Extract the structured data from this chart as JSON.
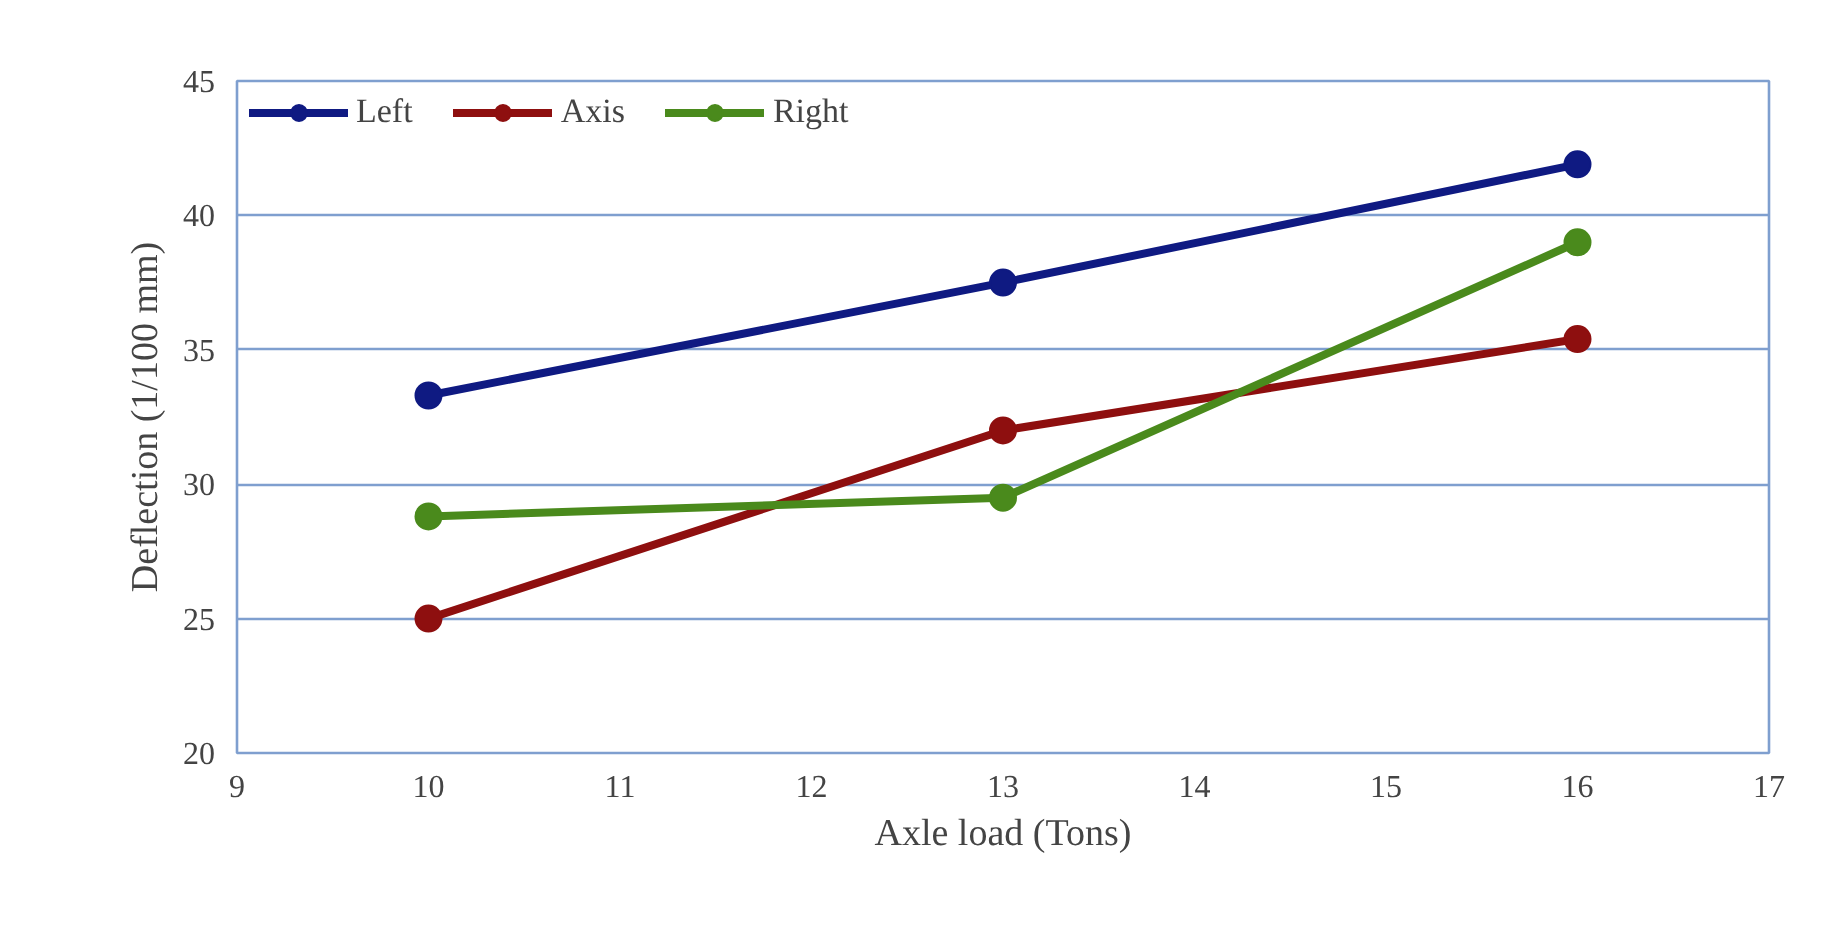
{
  "chart_data": {
    "type": "line",
    "xlabel": "Axle load (Tons)",
    "ylabel": "Deflection (1/100 mm)",
    "x": [
      10,
      13,
      16
    ],
    "xlim": [
      9,
      17
    ],
    "xticks": [
      9,
      10,
      11,
      12,
      13,
      14,
      15,
      16,
      17
    ],
    "ylim": [
      20,
      45
    ],
    "yticks": [
      20,
      25,
      30,
      35,
      40,
      45
    ],
    "grid": "y",
    "legend": "top",
    "marker": "circle",
    "line_style": "solid",
    "series": [
      {
        "name": "Left",
        "color": "#0f1a82",
        "values": [
          33.3,
          37.5,
          41.9
        ]
      },
      {
        "name": "Axis",
        "color": "#8e0f0f",
        "values": [
          25.0,
          32.0,
          35.4
        ]
      },
      {
        "name": "Right",
        "color": "#4a8a1c",
        "values": [
          28.8,
          29.5,
          39.0
        ]
      }
    ]
  }
}
